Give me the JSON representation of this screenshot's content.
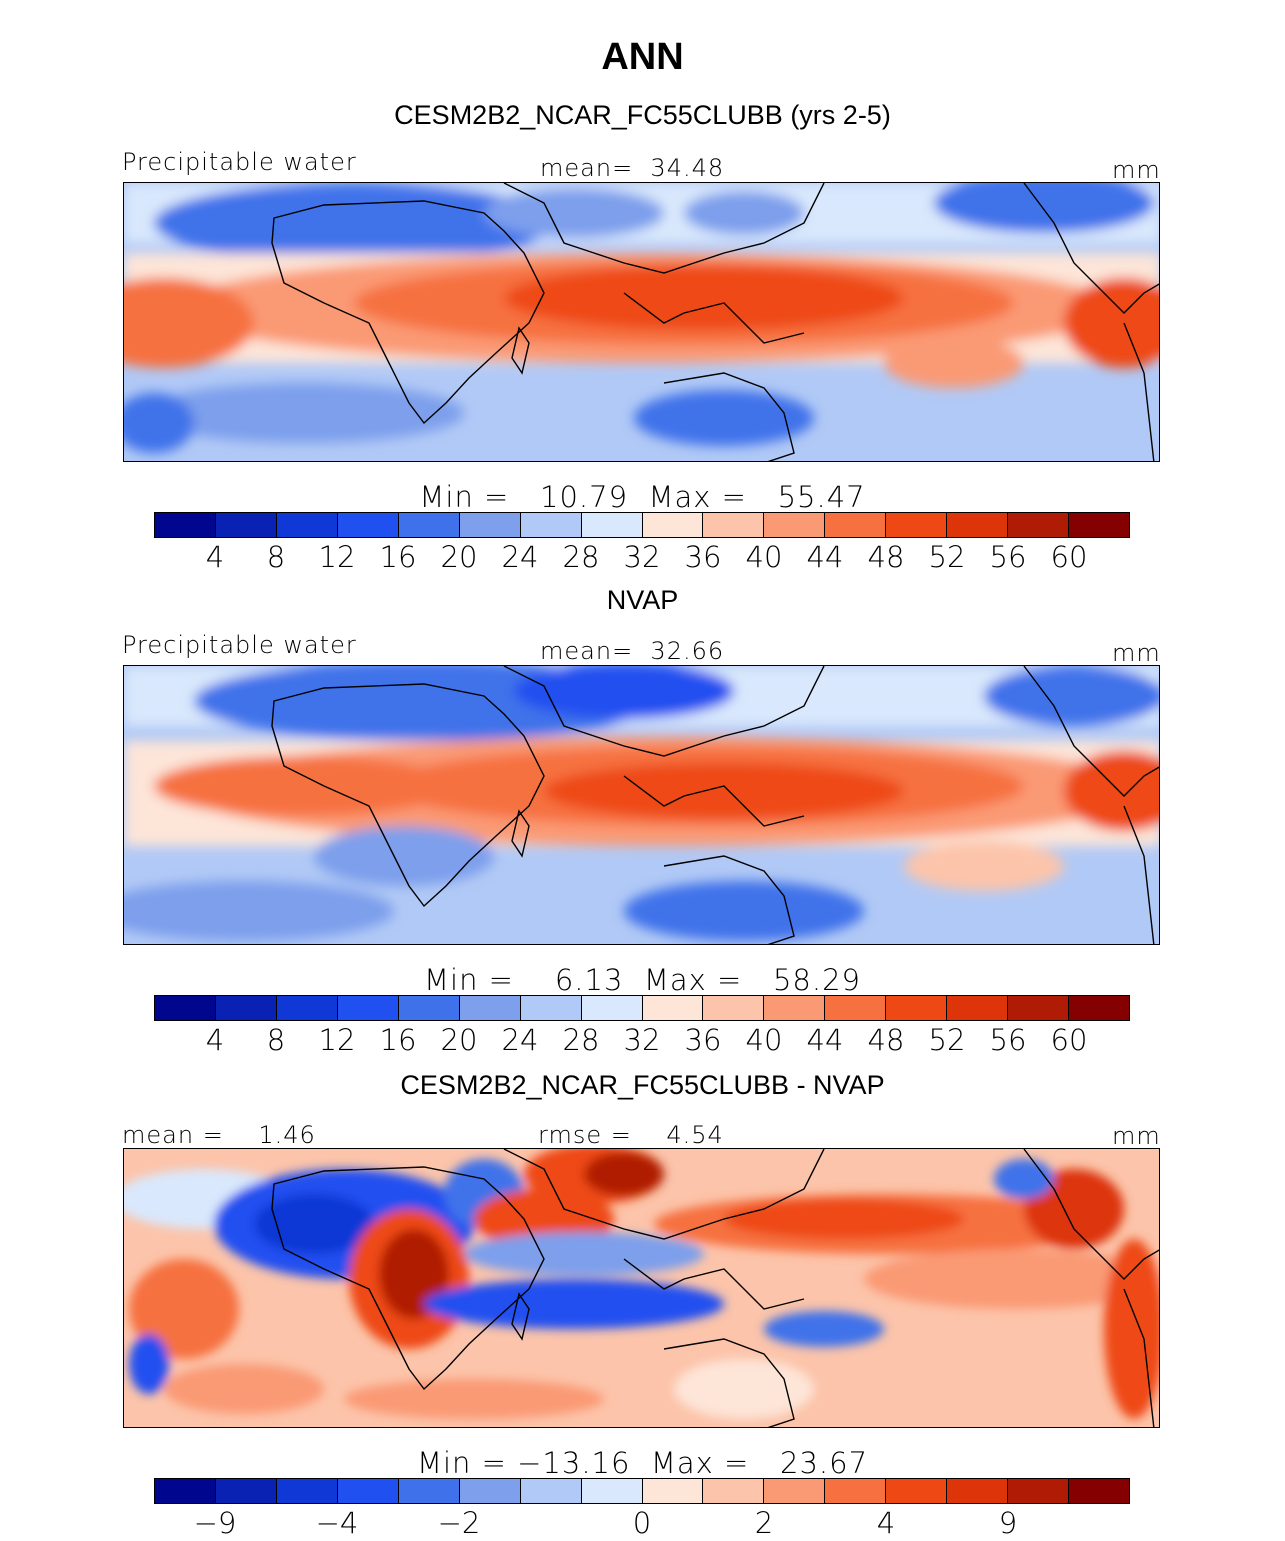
{
  "figure": {
    "title": "ANN",
    "units": "mm"
  },
  "colorbar_colors": [
    "#00068e",
    "#0a22b4",
    "#1038d6",
    "#2050f0",
    "#3f72ea",
    "#7d9fec",
    "#b1c9f6",
    "#d9e8fc",
    "#fde5d8",
    "#fcc4aa",
    "#fa9a74",
    "#f6713f",
    "#ee4915",
    "#dd3409",
    "#b01b06",
    "#850000"
  ],
  "panels": [
    {
      "title": "CESM2B2_NCAR_FC55CLUBB (yrs 2-5)",
      "left_label": "Precipitable water",
      "center_label": "mean=  34.48",
      "right_label": "mm",
      "minmax": "Min =   10.79  Max =   55.47",
      "ticks": [
        "4",
        "8",
        "12",
        "16",
        "20",
        "24",
        "28",
        "32",
        "36",
        "40",
        "44",
        "48",
        "52",
        "56",
        "60"
      ]
    },
    {
      "title": "NVAP",
      "left_label": "Precipitable water",
      "center_label": "mean=  32.66",
      "right_label": "mm",
      "minmax": "Min =    6.13  Max =   58.29",
      "ticks": [
        "4",
        "8",
        "12",
        "16",
        "20",
        "24",
        "28",
        "32",
        "36",
        "40",
        "44",
        "48",
        "52",
        "56",
        "60"
      ]
    },
    {
      "title": "CESM2B2_NCAR_FC55CLUBB - NVAP",
      "left_label": "mean =    1.46",
      "center_label": "rmse =    4.54",
      "right_label": "mm",
      "minmax": "Min = −13.16  Max =   23.67",
      "ticks": [
        "−9",
        "",
        "−4",
        "",
        "−2",
        "",
        "",
        "0",
        "",
        "2",
        "",
        "4",
        "",
        "9",
        ""
      ]
    }
  ]
}
